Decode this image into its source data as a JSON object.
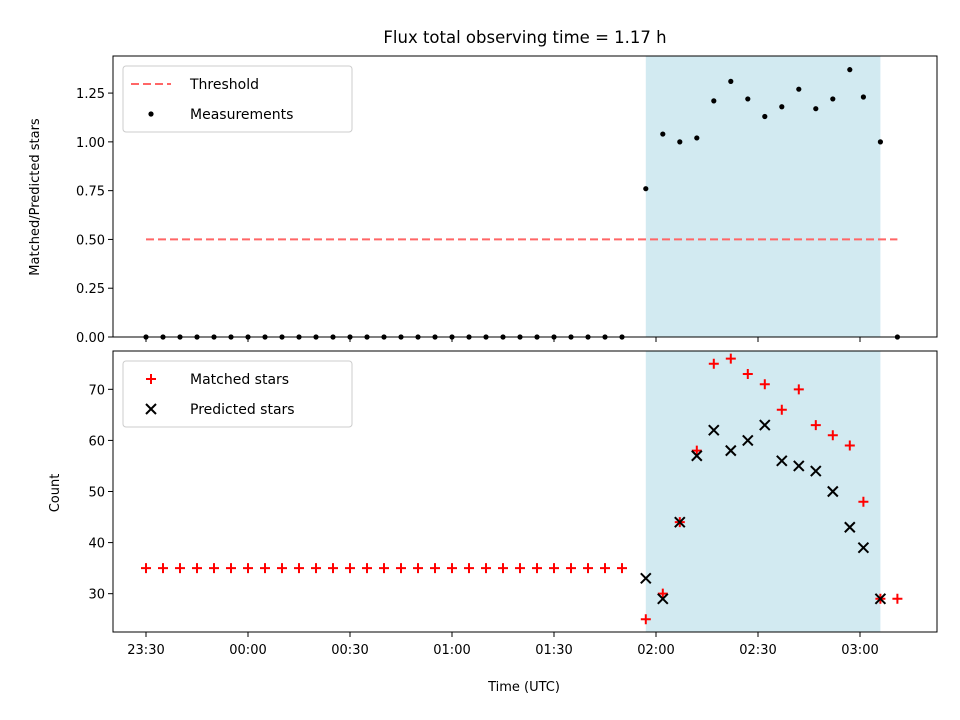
{
  "chart_data": [
    {
      "type": "scatter",
      "title": "Flux total observing time = 1.17 h",
      "xlabel": "",
      "ylabel": "Matched/Predicted stars",
      "ylim": [
        0,
        1.44
      ],
      "yticks": [
        "0.00",
        "0.25",
        "0.50",
        "0.75",
        "1.00",
        "1.25"
      ],
      "ytick_values": [
        0,
        0.25,
        0.5,
        0.75,
        1.0,
        1.25
      ],
      "shaded_region": {
        "from": "01:57",
        "to": "03:06",
        "color": "#add8e6"
      },
      "threshold": {
        "name": "Threshold",
        "value": 0.5,
        "from": "23:30",
        "to": "03:11",
        "color": "#ff6666"
      },
      "legend": [
        "Threshold",
        "Measurements"
      ],
      "legend_position": "upper left",
      "series": [
        {
          "name": "Measurements",
          "marker": "dot",
          "color": "#000000",
          "x": [
            "23:30",
            "23:35",
            "23:40",
            "23:45",
            "23:50",
            "23:55",
            "00:00",
            "00:05",
            "00:10",
            "00:15",
            "00:20",
            "00:25",
            "00:30",
            "00:35",
            "00:40",
            "00:45",
            "00:50",
            "00:55",
            "01:00",
            "01:05",
            "01:10",
            "01:15",
            "01:20",
            "01:25",
            "01:30",
            "01:35",
            "01:40",
            "01:45",
            "01:50",
            "01:57",
            "02:02",
            "02:07",
            "02:12",
            "02:17",
            "02:22",
            "02:27",
            "02:32",
            "02:37",
            "02:42",
            "02:47",
            "02:52",
            "02:57",
            "03:01",
            "03:06",
            "03:11"
          ],
          "y": [
            0,
            0,
            0,
            0,
            0,
            0,
            0,
            0,
            0,
            0,
            0,
            0,
            0,
            0,
            0,
            0,
            0,
            0,
            0,
            0,
            0,
            0,
            0,
            0,
            0,
            0,
            0,
            0,
            0,
            0.76,
            1.04,
            1.0,
            1.02,
            1.21,
            1.31,
            1.22,
            1.13,
            1.18,
            1.27,
            1.17,
            1.22,
            1.37,
            1.23,
            1.0,
            0
          ]
        }
      ]
    },
    {
      "type": "scatter",
      "title": "",
      "xlabel": "Time (UTC)",
      "ylabel": "Count",
      "ylim": [
        22.5,
        77.5
      ],
      "yticks": [
        "30",
        "40",
        "50",
        "60",
        "70"
      ],
      "ytick_values": [
        30,
        40,
        50,
        60,
        70
      ],
      "xticks": [
        "23:30",
        "00:00",
        "00:30",
        "01:00",
        "01:30",
        "02:00",
        "02:30",
        "03:00"
      ],
      "shaded_region": {
        "from": "01:57",
        "to": "03:06",
        "color": "#add8e6"
      },
      "legend": [
        "Matched stars",
        "Predicted stars"
      ],
      "legend_position": "upper left",
      "series": [
        {
          "name": "Matched stars",
          "marker": "plus",
          "color": "#ff0000",
          "x": [
            "23:30",
            "23:35",
            "23:40",
            "23:45",
            "23:50",
            "23:55",
            "00:00",
            "00:05",
            "00:10",
            "00:15",
            "00:20",
            "00:25",
            "00:30",
            "00:35",
            "00:40",
            "00:45",
            "00:50",
            "00:55",
            "01:00",
            "01:05",
            "01:10",
            "01:15",
            "01:20",
            "01:25",
            "01:30",
            "01:35",
            "01:40",
            "01:45",
            "01:50",
            "01:57",
            "02:02",
            "02:07",
            "02:12",
            "02:17",
            "02:22",
            "02:27",
            "02:32",
            "02:37",
            "02:42",
            "02:47",
            "02:52",
            "02:57",
            "03:01",
            "03:06",
            "03:11"
          ],
          "y": [
            35,
            35,
            35,
            35,
            35,
            35,
            35,
            35,
            35,
            35,
            35,
            35,
            35,
            35,
            35,
            35,
            35,
            35,
            35,
            35,
            35,
            35,
            35,
            35,
            35,
            35,
            35,
            35,
            35,
            25,
            30,
            44,
            58,
            75,
            76,
            73,
            71,
            66,
            70,
            63,
            61,
            59,
            48,
            29,
            29
          ]
        },
        {
          "name": "Predicted stars",
          "marker": "x",
          "color": "#000000",
          "x": [
            "01:57",
            "02:02",
            "02:07",
            "02:12",
            "02:17",
            "02:22",
            "02:27",
            "02:32",
            "02:37",
            "02:42",
            "02:47",
            "02:52",
            "02:57",
            "03:01",
            "03:06"
          ],
          "y": [
            33,
            29,
            44,
            57,
            62,
            58,
            60,
            63,
            56,
            55,
            54,
            50,
            43,
            39,
            29
          ]
        }
      ]
    }
  ]
}
